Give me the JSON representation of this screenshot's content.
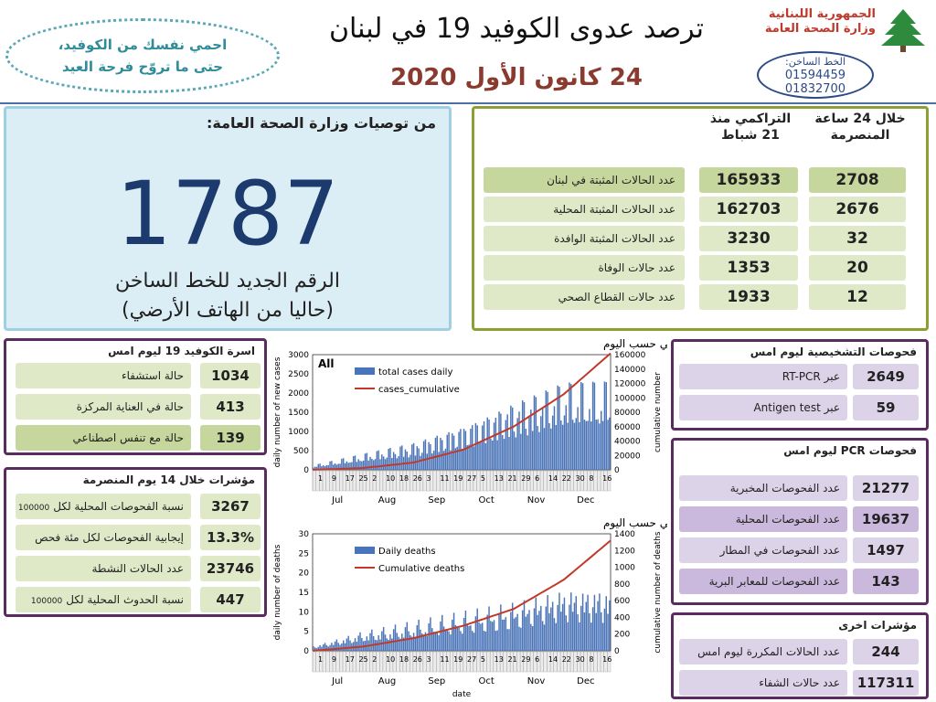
{
  "header": {
    "title": "ترصد عدوى الكوفيد 19 في لبنان",
    "date": "24 كانون الأول 2020",
    "advice_line1": "احمي نفسك من الكوفيد،",
    "advice_line2": "حتى ما تروّح فرحة العيد",
    "ministry_line1": "الجمهورية اللبنانية",
    "ministry_line2": "وزارة الصحة العامة",
    "hotline_label": "الخط الساخن:",
    "hotline_1": "01594459",
    "hotline_2": "01832700"
  },
  "hotline_panel": {
    "heading": "من توصيات وزارة الصحة العامة:",
    "number": "1787",
    "line1": "الرقم الجديد للخط الساخن",
    "line2": "(حاليا من الهاتف الأرضي)"
  },
  "summary": {
    "col_24h": "خلال 24 ساعة المنصرمة",
    "col_cum": "التراكمي منذ 21 شباط",
    "rows": [
      {
        "label": "عدد الحالات المثبتة في لبنان",
        "h24": "2708",
        "cum": "165933"
      },
      {
        "label": "عدد الحالات المثبتة المحلية",
        "h24": "2676",
        "cum": "162703"
      },
      {
        "label": "عدد الحالات المثبتة الوافدة",
        "h24": "32",
        "cum": "3230"
      },
      {
        "label": "عدد حالات الوفاة",
        "h24": "20",
        "cum": "1353"
      },
      {
        "label": "عدد حالات القطاع الصحي",
        "h24": "12",
        "cum": "1933"
      }
    ]
  },
  "beds": {
    "title": "اسرة الكوفيد 19 ليوم امس",
    "rows": [
      {
        "label": "حالة استشفاء",
        "value": "1034"
      },
      {
        "label": "حالة في العناية المركزة",
        "value": "413"
      },
      {
        "label": "حالة مع تنفس اصطناعي",
        "value": "139"
      }
    ]
  },
  "indicators14": {
    "title": "مؤشرات خلال 14 يوم المنصرمة",
    "rows": [
      {
        "label": "نسبة الفحوصات المحلية لكل",
        "suffix": "100000",
        "value": "3267"
      },
      {
        "label": "إيجابية الفحوصات لكل مئة فحص",
        "suffix": "",
        "value": "13.3%"
      },
      {
        "label": "عدد الحالات النشطة",
        "suffix": "",
        "value": "23746"
      },
      {
        "label": "نسبة الحدوث المحلية لكل",
        "suffix": "100000",
        "value": "447"
      }
    ]
  },
  "diagnostic": {
    "title": "فحوصات التشخيصية ليوم امس",
    "rows": [
      {
        "label": "عبر RT-PCR",
        "value": "2649"
      },
      {
        "label": "عبر Antigen test",
        "value": "59"
      }
    ]
  },
  "pcr": {
    "title": "فحوصات PCR ليوم امس",
    "rows": [
      {
        "label": "عدد الفحوصات المخبرية",
        "value": "21277"
      },
      {
        "label": "عدد الفحوصات المحلية",
        "value": "19637"
      },
      {
        "label": "عدد الفحوصات في المطار",
        "value": "1497"
      },
      {
        "label": "عدد الفحوصات للمعابر البرية",
        "value": "143"
      }
    ]
  },
  "other": {
    "title": "مؤشرات اخرى",
    "rows": [
      {
        "label": "عدد الحالات المكررة ليوم امس",
        "value": "244"
      },
      {
        "label": "عدد حالات الشفاء",
        "value": "117311"
      }
    ]
  },
  "colors": {
    "bar": "#4a74b8",
    "line": "#c0392b"
  },
  "chart_data": [
    {
      "type": "bar",
      "title": "توزيع عدد الحالات الجديدة اليومي والتراكمي حسب اليوم",
      "tag": "All",
      "ylabel": "daily number of new cases",
      "y2label": "cumulative number",
      "ylim": [
        0,
        3000
      ],
      "y2lim": [
        0,
        160000
      ],
      "yticks": [
        "0",
        "500",
        "1000",
        "1500",
        "2000",
        "2500",
        "3000"
      ],
      "y2ticks": [
        "0",
        "20000",
        "40000",
        "60000",
        "80000",
        "100000",
        "120000",
        "140000",
        "160000"
      ],
      "series": [
        {
          "name": "total cases daily",
          "kind": "bar",
          "values_approx_monthly": [
            100,
            350,
            600,
            1000,
            1500,
            1900
          ]
        },
        {
          "name": "cases_cumulative",
          "kind": "line",
          "values_approx_monthly": [
            2500,
            10000,
            28000,
            60000,
            105000,
            165933
          ]
        }
      ],
      "months": [
        "Jul",
        "Aug",
        "Sep",
        "Oct",
        "Nov",
        "Dec"
      ],
      "day_ticks": [
        "1",
        "9",
        "17",
        "25",
        "2",
        "10",
        "18",
        "26",
        "3",
        "11",
        "19",
        "27",
        "5",
        "13",
        "21",
        "29",
        "6",
        "14",
        "22",
        "30",
        "8",
        "16"
      ]
    },
    {
      "type": "bar",
      "title": "توزيع عدد حالات الوفاة اليومي والتراكمي حسب اليوم",
      "ylabel": "daily number of deaths",
      "y2label": "cumulative number of deaths",
      "xlabel": "date",
      "ylim": [
        0,
        30
      ],
      "y2lim": [
        0,
        1400
      ],
      "yticks": [
        "0",
        "5",
        "10",
        "15",
        "20",
        "25",
        "30"
      ],
      "y2ticks": [
        "0",
        "200",
        "400",
        "600",
        "800",
        "1000",
        "1200",
        "1400"
      ],
      "series": [
        {
          "name": "Daily deaths",
          "kind": "bar",
          "values_approx_monthly": [
            1,
            4,
            6,
            8,
            10,
            13
          ]
        },
        {
          "name": "Cumulative deaths",
          "kind": "line",
          "values_approx_monthly": [
            50,
            150,
            300,
            500,
            850,
            1353
          ]
        }
      ],
      "months": [
        "Jul",
        "Aug",
        "Sep",
        "Oct",
        "Nov",
        "Dec"
      ],
      "day_ticks": [
        "1",
        "9",
        "17",
        "25",
        "2",
        "10",
        "18",
        "26",
        "3",
        "11",
        "19",
        "27",
        "5",
        "13",
        "21",
        "29",
        "6",
        "14",
        "22",
        "30",
        "8",
        "16"
      ]
    }
  ]
}
